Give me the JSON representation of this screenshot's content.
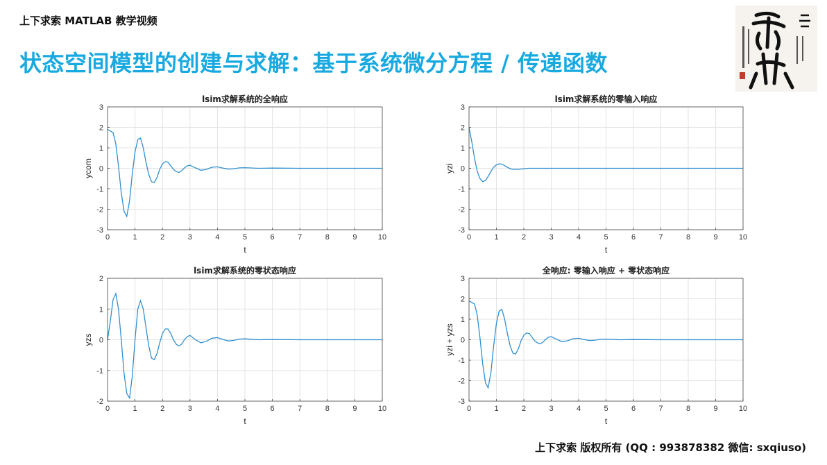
{
  "header": {
    "tag": "上下求索 MATLAB 教学视频",
    "title": "状态空间模型的创建与求解：基于系统微分方程 / 传递函数"
  },
  "footer": {
    "text": "上下求索 版权所有 (QQ : 993878382   微信: sxqiuso)"
  },
  "colors": {
    "title": "#19a9e1",
    "curve": "#2f8fcf"
  },
  "chart_data": [
    {
      "type": "line",
      "title": "lsim求解系统的全响应",
      "xlabel": "t",
      "ylabel": "ycom",
      "xlim": [
        0,
        10
      ],
      "ylim": [
        -3,
        3
      ],
      "xticks": [
        0,
        1,
        2,
        3,
        4,
        5,
        6,
        7,
        8,
        9,
        10
      ],
      "yticks": [
        -3,
        -2,
        -1,
        0,
        1,
        2,
        3
      ],
      "grid": true,
      "x": [
        0,
        0.1,
        0.2,
        0.3,
        0.4,
        0.5,
        0.6,
        0.7,
        0.8,
        0.9,
        1.0,
        1.1,
        1.2,
        1.3,
        1.4,
        1.5,
        1.6,
        1.7,
        1.8,
        1.9,
        2.0,
        2.1,
        2.2,
        2.3,
        2.4,
        2.5,
        2.6,
        2.7,
        2.8,
        2.9,
        3.0,
        3.2,
        3.4,
        3.6,
        3.8,
        4.0,
        4.2,
        4.4,
        4.6,
        4.8,
        5.0,
        5.5,
        6.0,
        7.0,
        8.0,
        9.0,
        10.0
      ],
      "y": [
        1.9,
        1.82,
        1.75,
        1.2,
        0.1,
        -1.2,
        -2.1,
        -2.35,
        -1.6,
        -0.3,
        0.8,
        1.4,
        1.48,
        1.0,
        0.3,
        -0.3,
        -0.65,
        -0.7,
        -0.45,
        -0.05,
        0.22,
        0.33,
        0.3,
        0.12,
        -0.05,
        -0.16,
        -0.2,
        -0.12,
        0.02,
        0.12,
        0.15,
        0.02,
        -0.1,
        -0.05,
        0.05,
        0.07,
        0.01,
        -0.04,
        -0.02,
        0.02,
        0.03,
        0.0,
        0.01,
        0.0,
        0.0,
        0.0,
        0.0
      ]
    },
    {
      "type": "line",
      "title": "lsim求解系统的零输入响应",
      "xlabel": "t",
      "ylabel": "yzi",
      "xlim": [
        0,
        10
      ],
      "ylim": [
        -3,
        3
      ],
      "xticks": [
        0,
        1,
        2,
        3,
        4,
        5,
        6,
        7,
        8,
        9,
        10
      ],
      "yticks": [
        -3,
        -2,
        -1,
        0,
        1,
        2,
        3
      ],
      "grid": true,
      "x": [
        0,
        0.1,
        0.2,
        0.3,
        0.4,
        0.5,
        0.6,
        0.7,
        0.8,
        0.9,
        1.0,
        1.1,
        1.2,
        1.3,
        1.4,
        1.5,
        1.6,
        1.8,
        2.0,
        2.2,
        2.5,
        3.0,
        4.0,
        5.0,
        6.0,
        8.0,
        10.0
      ],
      "y": [
        2.0,
        1.3,
        0.5,
        -0.15,
        -0.5,
        -0.65,
        -0.6,
        -0.4,
        -0.15,
        0.05,
        0.17,
        0.22,
        0.2,
        0.13,
        0.05,
        -0.02,
        -0.05,
        -0.05,
        -0.02,
        0.0,
        0.0,
        0.0,
        0.0,
        0.0,
        0.0,
        0.0,
        0.0
      ]
    },
    {
      "type": "line",
      "title": "lsim求解系统的零状态响应",
      "xlabel": "t",
      "ylabel": "yzs",
      "xlim": [
        0,
        10
      ],
      "ylim": [
        -2,
        2
      ],
      "xticks": [
        0,
        1,
        2,
        3,
        4,
        5,
        6,
        7,
        8,
        9,
        10
      ],
      "yticks": [
        -2,
        -1,
        0,
        1,
        2
      ],
      "grid": true,
      "x": [
        0,
        0.1,
        0.2,
        0.3,
        0.4,
        0.5,
        0.6,
        0.7,
        0.8,
        0.9,
        1.0,
        1.1,
        1.2,
        1.3,
        1.4,
        1.5,
        1.6,
        1.7,
        1.8,
        1.9,
        2.0,
        2.1,
        2.2,
        2.3,
        2.4,
        2.5,
        2.6,
        2.7,
        2.8,
        2.9,
        3.0,
        3.2,
        3.4,
        3.6,
        3.8,
        4.0,
        4.2,
        4.4,
        4.6,
        4.8,
        5.0,
        5.5,
        6.0,
        7.0,
        8.0,
        9.0,
        10.0
      ],
      "y": [
        0,
        0.6,
        1.3,
        1.5,
        1.0,
        0.0,
        -1.1,
        -1.75,
        -1.9,
        -1.2,
        0.0,
        1.0,
        1.27,
        1.0,
        0.4,
        -0.2,
        -0.6,
        -0.65,
        -0.45,
        -0.1,
        0.2,
        0.35,
        0.35,
        0.2,
        0.0,
        -0.15,
        -0.2,
        -0.14,
        0.0,
        0.1,
        0.14,
        0.0,
        -0.1,
        -0.05,
        0.05,
        0.07,
        0.01,
        -0.04,
        -0.02,
        0.02,
        0.03,
        0.0,
        0.01,
        0.0,
        0.0,
        0.0,
        0.0
      ]
    },
    {
      "type": "line",
      "title": "全响应: 零输入响应 + 零状态响应",
      "xlabel": "t",
      "ylabel": "yzi + yzs",
      "xlim": [
        0,
        10
      ],
      "ylim": [
        -3,
        3
      ],
      "xticks": [
        0,
        1,
        2,
        3,
        4,
        5,
        6,
        7,
        8,
        9,
        10
      ],
      "yticks": [
        -3,
        -2,
        -1,
        0,
        1,
        2,
        3
      ],
      "grid": true,
      "x": [
        0,
        0.1,
        0.2,
        0.3,
        0.4,
        0.5,
        0.6,
        0.7,
        0.8,
        0.9,
        1.0,
        1.1,
        1.2,
        1.3,
        1.4,
        1.5,
        1.6,
        1.7,
        1.8,
        1.9,
        2.0,
        2.1,
        2.2,
        2.3,
        2.4,
        2.5,
        2.6,
        2.7,
        2.8,
        2.9,
        3.0,
        3.2,
        3.4,
        3.6,
        3.8,
        4.0,
        4.2,
        4.4,
        4.6,
        4.8,
        5.0,
        5.5,
        6.0,
        7.0,
        8.0,
        9.0,
        10.0
      ],
      "y": [
        1.9,
        1.82,
        1.75,
        1.2,
        0.1,
        -1.2,
        -2.1,
        -2.35,
        -1.6,
        -0.3,
        0.8,
        1.4,
        1.48,
        1.0,
        0.3,
        -0.3,
        -0.65,
        -0.7,
        -0.45,
        -0.05,
        0.22,
        0.33,
        0.3,
        0.12,
        -0.05,
        -0.16,
        -0.2,
        -0.12,
        0.02,
        0.12,
        0.15,
        0.02,
        -0.1,
        -0.05,
        0.05,
        0.07,
        0.01,
        -0.04,
        -0.02,
        0.02,
        0.03,
        0.0,
        0.01,
        0.0,
        0.0,
        0.0,
        0.0
      ]
    }
  ]
}
